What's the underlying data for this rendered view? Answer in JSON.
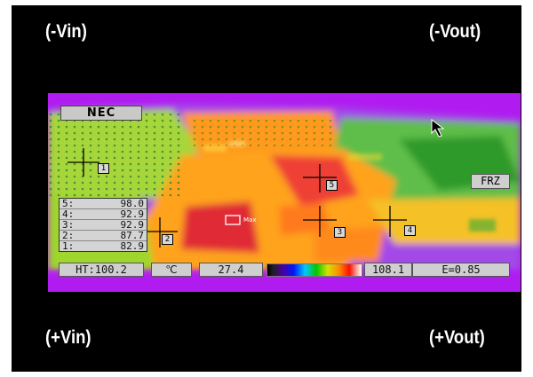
{
  "corners": {
    "top_left": "(-Vin)",
    "top_right": "(-Vout)",
    "bottom_left": "(+Vin)",
    "bottom_right": "(+Vout)"
  },
  "camera": {
    "brand": "NEC",
    "freeze": "FRZ",
    "max_label": "Max"
  },
  "points": [
    {
      "label": "5:",
      "value": "98.0"
    },
    {
      "label": "4:",
      "value": "92.9"
    },
    {
      "label": "3:",
      "value": "92.9"
    },
    {
      "label": "2:",
      "value": "87.7"
    },
    {
      "label": "1:",
      "value": "82.9"
    }
  ],
  "markers": [
    "1",
    "2",
    "3",
    "4",
    "5"
  ],
  "status": {
    "ht": "HT:100.2",
    "unit": "℃",
    "scale_min": "27.4",
    "scale_max": "108.1",
    "emissivity": "E=0.85"
  },
  "colors": {
    "background": "#b01cf0",
    "hot": "#e8232e",
    "warm": "#ff8a00",
    "cool": "#9ed82a"
  }
}
